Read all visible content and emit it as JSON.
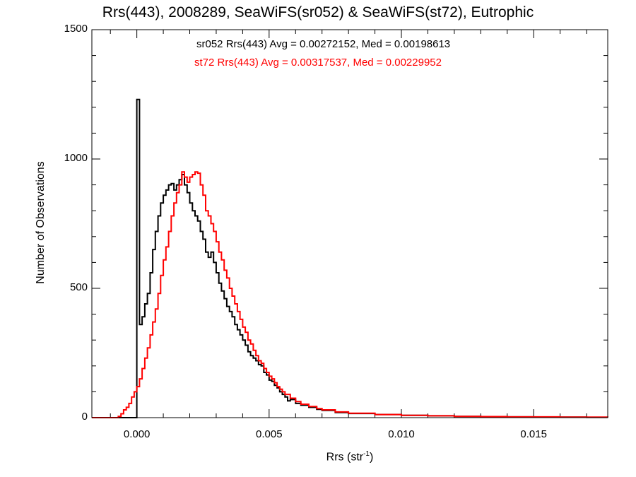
{
  "chart_data": {
    "type": "line",
    "title": "Rrs(443), 2008289, SeaWiFS(sr052) & SeaWiFS(st72), Eutrophic",
    "xlabel_main": "Rrs (str",
    "xlabel_sup": "-1",
    "xlabel_close": ")",
    "ylabel": "Number of Observations",
    "xlim": [
      -0.0017,
      0.0178
    ],
    "ylim": [
      0,
      1500
    ],
    "xticks": [
      {
        "value": 0.0,
        "label": "0.000"
      },
      {
        "value": 0.005,
        "label": "0.005"
      },
      {
        "value": 0.01,
        "label": "0.010"
      },
      {
        "value": 0.015,
        "label": "0.015"
      }
    ],
    "yticks": [
      {
        "value": 0,
        "label": "0"
      },
      {
        "value": 500,
        "label": "500"
      },
      {
        "value": 1000,
        "label": "1000"
      },
      {
        "value": 1500,
        "label": "1500"
      }
    ],
    "annotations": [
      {
        "text": "sr052 Rrs(443) Avg = 0.00272152, Med = 0.00198613",
        "color": "#000000"
      },
      {
        "text": "st72 Rrs(443) Avg = 0.00317537, Med = 0.00229952",
        "color": "#ff0000"
      }
    ],
    "series": [
      {
        "color": "#000000",
        "points": [
          [
            -0.0017,
            0
          ],
          [
            -0.0001,
            0
          ],
          [
            0.0,
            1230
          ],
          [
            0.0001,
            360
          ],
          [
            0.0002,
            390
          ],
          [
            0.0003,
            440
          ],
          [
            0.0004,
            480
          ],
          [
            0.0005,
            560
          ],
          [
            0.0006,
            650
          ],
          [
            0.0007,
            720
          ],
          [
            0.0008,
            780
          ],
          [
            0.0009,
            830
          ],
          [
            0.001,
            860
          ],
          [
            0.0011,
            880
          ],
          [
            0.0012,
            900
          ],
          [
            0.0013,
            905
          ],
          [
            0.0014,
            880
          ],
          [
            0.0015,
            900
          ],
          [
            0.0016,
            920
          ],
          [
            0.0017,
            940
          ],
          [
            0.0018,
            900
          ],
          [
            0.0019,
            870
          ],
          [
            0.002,
            830
          ],
          [
            0.0021,
            800
          ],
          [
            0.0022,
            780
          ],
          [
            0.0023,
            760
          ],
          [
            0.0024,
            720
          ],
          [
            0.0025,
            690
          ],
          [
            0.0026,
            640
          ],
          [
            0.0027,
            620
          ],
          [
            0.0028,
            640
          ],
          [
            0.0029,
            600
          ],
          [
            0.003,
            560
          ],
          [
            0.0031,
            520
          ],
          [
            0.0032,
            490
          ],
          [
            0.0033,
            460
          ],
          [
            0.0034,
            430
          ],
          [
            0.0035,
            410
          ],
          [
            0.0036,
            390
          ],
          [
            0.0037,
            360
          ],
          [
            0.0038,
            340
          ],
          [
            0.0039,
            320
          ],
          [
            0.004,
            300
          ],
          [
            0.0041,
            280
          ],
          [
            0.0042,
            255
          ],
          [
            0.0043,
            240
          ],
          [
            0.0044,
            230
          ],
          [
            0.0045,
            220
          ],
          [
            0.0046,
            205
          ],
          [
            0.0047,
            200
          ],
          [
            0.0048,
            175
          ],
          [
            0.0049,
            165
          ],
          [
            0.005,
            145
          ],
          [
            0.0051,
            140
          ],
          [
            0.0052,
            125
          ],
          [
            0.0053,
            115
          ],
          [
            0.0054,
            100
          ],
          [
            0.0055,
            90
          ],
          [
            0.0056,
            80
          ],
          [
            0.0057,
            65
          ],
          [
            0.0058,
            70
          ],
          [
            0.006,
            55
          ],
          [
            0.0062,
            48
          ],
          [
            0.0065,
            40
          ],
          [
            0.0068,
            32
          ],
          [
            0.007,
            28
          ],
          [
            0.0075,
            20
          ],
          [
            0.008,
            16
          ],
          [
            0.009,
            12
          ],
          [
            0.01,
            9
          ],
          [
            0.011,
            7
          ],
          [
            0.012,
            5
          ],
          [
            0.013,
            4
          ],
          [
            0.014,
            3
          ],
          [
            0.015,
            2
          ],
          [
            0.016,
            2
          ],
          [
            0.017,
            1
          ],
          [
            0.0178,
            1
          ]
        ]
      },
      {
        "color": "#ff0000",
        "points": [
          [
            -0.0017,
            0
          ],
          [
            -0.0008,
            0
          ],
          [
            -0.0007,
            5
          ],
          [
            -0.0006,
            15
          ],
          [
            -0.0005,
            30
          ],
          [
            -0.0004,
            40
          ],
          [
            -0.0003,
            55
          ],
          [
            -0.0002,
            80
          ],
          [
            -0.0001,
            100
          ],
          [
            0.0,
            120
          ],
          [
            0.0001,
            150
          ],
          [
            0.0002,
            190
          ],
          [
            0.0003,
            230
          ],
          [
            0.0004,
            270
          ],
          [
            0.0005,
            320
          ],
          [
            0.0006,
            370
          ],
          [
            0.0007,
            420
          ],
          [
            0.0008,
            480
          ],
          [
            0.0009,
            550
          ],
          [
            0.001,
            610
          ],
          [
            0.0011,
            660
          ],
          [
            0.0012,
            720
          ],
          [
            0.0013,
            780
          ],
          [
            0.0014,
            830
          ],
          [
            0.0015,
            870
          ],
          [
            0.0016,
            900
          ],
          [
            0.0017,
            950
          ],
          [
            0.0018,
            930
          ],
          [
            0.0019,
            910
          ],
          [
            0.002,
            930
          ],
          [
            0.0021,
            940
          ],
          [
            0.0022,
            950
          ],
          [
            0.0023,
            945
          ],
          [
            0.0024,
            900
          ],
          [
            0.0025,
            860
          ],
          [
            0.0026,
            800
          ],
          [
            0.0027,
            780
          ],
          [
            0.0028,
            750
          ],
          [
            0.0029,
            720
          ],
          [
            0.003,
            680
          ],
          [
            0.0031,
            640
          ],
          [
            0.0032,
            610
          ],
          [
            0.0033,
            570
          ],
          [
            0.0034,
            540
          ],
          [
            0.0035,
            500
          ],
          [
            0.0036,
            470
          ],
          [
            0.0037,
            440
          ],
          [
            0.0038,
            410
          ],
          [
            0.0039,
            380
          ],
          [
            0.004,
            350
          ],
          [
            0.0041,
            330
          ],
          [
            0.0042,
            300
          ],
          [
            0.0043,
            285
          ],
          [
            0.0044,
            260
          ],
          [
            0.0045,
            240
          ],
          [
            0.0046,
            220
          ],
          [
            0.0047,
            210
          ],
          [
            0.0048,
            190
          ],
          [
            0.0049,
            175
          ],
          [
            0.005,
            160
          ],
          [
            0.0051,
            150
          ],
          [
            0.0052,
            135
          ],
          [
            0.0053,
            120
          ],
          [
            0.0054,
            110
          ],
          [
            0.0055,
            100
          ],
          [
            0.0056,
            90
          ],
          [
            0.0058,
            75
          ],
          [
            0.006,
            62
          ],
          [
            0.0062,
            52
          ],
          [
            0.0065,
            43
          ],
          [
            0.0068,
            35
          ],
          [
            0.007,
            30
          ],
          [
            0.0075,
            22
          ],
          [
            0.008,
            17
          ],
          [
            0.009,
            12
          ],
          [
            0.01,
            9
          ],
          [
            0.011,
            7
          ],
          [
            0.012,
            5
          ],
          [
            0.013,
            4
          ],
          [
            0.014,
            3
          ],
          [
            0.015,
            3
          ],
          [
            0.016,
            2
          ],
          [
            0.017,
            2
          ],
          [
            0.0178,
            1
          ]
        ]
      }
    ]
  }
}
